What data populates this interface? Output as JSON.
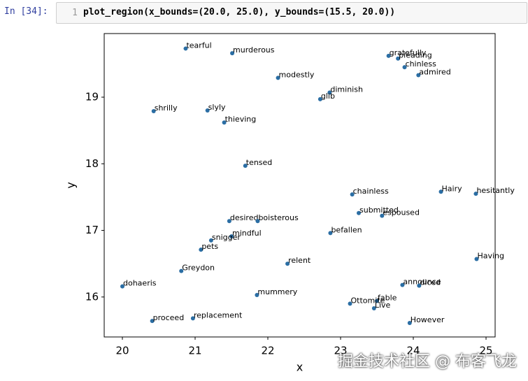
{
  "cell": {
    "prompt": "In [34]:",
    "line_number": "1",
    "code": "plot_region(x_bounds=(20.0, 25.0), y_bounds=(15.5, 20.0))"
  },
  "chart_data": {
    "type": "scatter",
    "x_label": "x",
    "y_label": "y",
    "color": "#2b6ea4",
    "labels": [
      "tearful",
      "murderous",
      "modestly",
      "gratefully",
      "pleading",
      "chinless",
      "admired",
      "diminish",
      "glib",
      "shrilly",
      "slyly",
      "thieving",
      "tensed",
      "chainless",
      "Hairy",
      "hesitantly",
      "submitted",
      "espoused",
      "desired",
      "boisterous",
      "befallen",
      "mindful",
      "snigger",
      "pets",
      "Having",
      "relent",
      "Greydon",
      "dohaeris",
      "announce",
      "diced",
      "mummery",
      "fable",
      "Ottomite",
      "Live",
      "replacement",
      "proceed",
      "However"
    ],
    "x": [
      20.87,
      21.51,
      22.14,
      23.66,
      23.79,
      23.88,
      24.07,
      22.85,
      22.72,
      20.43,
      21.17,
      21.4,
      21.69,
      23.16,
      24.38,
      24.86,
      23.25,
      23.57,
      21.47,
      21.86,
      22.86,
      21.5,
      21.22,
      21.08,
      24.87,
      22.27,
      20.81,
      20.0,
      23.85,
      24.08,
      21.85,
      23.5,
      23.13,
      23.46,
      20.97,
      20.41,
      23.95
    ],
    "y": [
      19.73,
      19.66,
      19.29,
      19.62,
      19.58,
      19.45,
      19.33,
      19.07,
      18.97,
      18.79,
      18.8,
      18.62,
      17.97,
      17.54,
      17.58,
      17.55,
      17.26,
      17.22,
      17.14,
      17.14,
      16.96,
      16.91,
      16.85,
      16.71,
      16.57,
      16.5,
      16.39,
      16.16,
      16.18,
      16.17,
      16.03,
      15.94,
      15.9,
      15.83,
      15.68,
      15.64,
      15.61
    ],
    "xlim": [
      19.75,
      25.125
    ],
    "ylim": [
      15.4,
      19.955
    ],
    "xticks": [
      20,
      21,
      22,
      23,
      24,
      25
    ],
    "yticks": [
      16,
      17,
      18,
      19
    ]
  },
  "watermark": "掘金技术社区 @ 布客飞龙"
}
